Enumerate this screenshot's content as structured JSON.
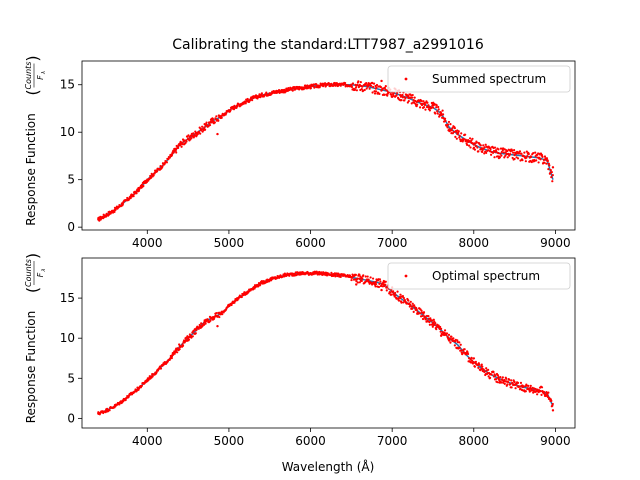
{
  "figure": {
    "title": "Calibrating the standard:LTT7987_a2991016"
  },
  "chart_data": [
    {
      "type": "scatter",
      "title": "Calibrating the standard:LTT7987_a2991016",
      "ylabel_main": "Response Function",
      "ylabel_frac_num": "Counts",
      "ylabel_frac_den": "F",
      "ylabel_frac_den_sub": "λ",
      "xlabel": "",
      "xlim": [
        3200,
        9240
      ],
      "ylim": [
        -0.3,
        17.5
      ],
      "xticks": [
        4000,
        5000,
        6000,
        7000,
        8000,
        9000
      ],
      "yticks": [
        0,
        5,
        10,
        15
      ],
      "legend": {
        "label": "Summed spectrum",
        "placement": "top-right"
      },
      "colors": {
        "points": "#ff0000",
        "fit": "#1f77b4"
      },
      "series": [
        {
          "name": "Summed spectrum",
          "kind": "points",
          "x": [
            3400,
            3500,
            3600,
            3700,
            3800,
            3900,
            4000,
            4100,
            4200,
            4300,
            4350,
            4400,
            4500,
            4600,
            4700,
            4800,
            4860,
            4900,
            5000,
            5100,
            5200,
            5300,
            5400,
            5500,
            5600,
            5700,
            5800,
            5900,
            6000,
            6100,
            6200,
            6300,
            6400,
            6500,
            6600,
            6700,
            6800,
            6870,
            6950,
            7000,
            7100,
            7200,
            7300,
            7400,
            7500,
            7600,
            7700,
            7800,
            7900,
            8000,
            8100,
            8200,
            8300,
            8400,
            8500,
            8600,
            8700,
            8800,
            8900,
            8970
          ],
          "y": [
            0.8,
            1.3,
            1.8,
            2.5,
            3.2,
            4.0,
            5.0,
            5.8,
            6.6,
            7.6,
            8.2,
            8.8,
            9.3,
            9.9,
            10.5,
            11.2,
            9.8,
            11.6,
            12.3,
            12.8,
            13.2,
            13.6,
            13.9,
            14.1,
            14.3,
            14.4,
            14.6,
            14.7,
            14.8,
            14.9,
            15.0,
            15.0,
            15.0,
            15.0,
            14.9,
            14.8,
            14.6,
            15.4,
            14.3,
            14.2,
            13.9,
            13.6,
            13.2,
            12.9,
            12.6,
            11.8,
            10.3,
            9.8,
            9.2,
            8.7,
            8.3,
            8.0,
            7.8,
            7.7,
            7.6,
            7.5,
            7.4,
            7.3,
            7.0,
            6.3
          ]
        },
        {
          "name": "",
          "kind": "line",
          "x": [
            3400,
            3500,
            3600,
            3700,
            3800,
            3900,
            4000,
            4100,
            4200,
            4300,
            4400,
            4500,
            4600,
            4700,
            4800,
            4900,
            5000,
            5100,
            5200,
            5300,
            5400,
            5500,
            5600,
            5700,
            5800,
            5900,
            6000,
            6100,
            6200,
            6300,
            6400,
            6500,
            6600,
            6700,
            6800,
            6900,
            7000,
            7100,
            7200,
            7300,
            7400,
            7500,
            7600,
            7700,
            7800,
            7900,
            8000,
            8100,
            8200,
            8300,
            8400,
            8500,
            8600,
            8700,
            8800,
            8900,
            8970
          ],
          "y": [
            0.8,
            1.3,
            1.8,
            2.5,
            3.2,
            4.0,
            5.0,
            5.8,
            6.6,
            7.6,
            8.7,
            9.3,
            9.9,
            10.5,
            11.2,
            11.6,
            12.3,
            12.8,
            13.2,
            13.6,
            13.9,
            14.1,
            14.3,
            14.4,
            14.6,
            14.7,
            14.8,
            14.9,
            15.0,
            15.0,
            15.0,
            15.0,
            14.9,
            14.8,
            14.6,
            14.4,
            14.2,
            13.9,
            13.6,
            13.2,
            12.9,
            12.6,
            12.0,
            10.5,
            9.8,
            9.2,
            8.7,
            8.3,
            8.0,
            7.8,
            7.7,
            7.6,
            7.5,
            7.4,
            7.3,
            7.0,
            5.0
          ]
        }
      ]
    },
    {
      "type": "scatter",
      "title": "",
      "ylabel_main": "Response Function",
      "ylabel_frac_num": "Counts",
      "ylabel_frac_den": "F",
      "ylabel_frac_den_sub": "λ",
      "xlabel": "Wavelength (Å)",
      "xlim": [
        3200,
        9240
      ],
      "ylim": [
        -1.2,
        20
      ],
      "xticks": [
        4000,
        5000,
        6000,
        7000,
        8000,
        9000
      ],
      "yticks": [
        0,
        5,
        10,
        15
      ],
      "legend": {
        "label": "Optimal spectrum",
        "placement": "top-right"
      },
      "colors": {
        "points": "#ff0000",
        "fit": "#1f77b4"
      },
      "series": [
        {
          "name": "Optimal spectrum",
          "kind": "points",
          "x": [
            3400,
            3500,
            3600,
            3700,
            3800,
            3900,
            4000,
            4100,
            4200,
            4300,
            4350,
            4400,
            4500,
            4600,
            4700,
            4800,
            4860,
            4900,
            5000,
            5100,
            5200,
            5300,
            5400,
            5500,
            5600,
            5700,
            5800,
            5900,
            6000,
            6100,
            6200,
            6300,
            6400,
            6500,
            6560,
            6600,
            6700,
            6800,
            6870,
            6900,
            7000,
            7100,
            7200,
            7300,
            7400,
            7500,
            7600,
            7700,
            7800,
            7900,
            8000,
            8100,
            8200,
            8300,
            8400,
            8500,
            8600,
            8700,
            8800,
            8900,
            8970
          ],
          "y": [
            0.6,
            1.0,
            1.5,
            2.2,
            3.0,
            3.8,
            4.8,
            5.7,
            6.7,
            7.7,
            8.3,
            9.0,
            10.0,
            11.0,
            12.0,
            12.6,
            11.5,
            13.0,
            14.0,
            14.9,
            15.6,
            16.3,
            16.9,
            17.3,
            17.6,
            17.9,
            18.0,
            18.1,
            18.1,
            18.1,
            18.0,
            17.9,
            17.8,
            17.6,
            16.7,
            17.4,
            17.2,
            17.0,
            16.0,
            16.7,
            15.8,
            15.0,
            14.3,
            13.5,
            12.7,
            11.9,
            10.3,
            9.7,
            8.8,
            8.0,
            7.0,
            6.2,
            5.5,
            5.0,
            4.6,
            4.2,
            3.9,
            3.7,
            3.5,
            3.1,
            1.0
          ]
        },
        {
          "name": "",
          "kind": "line",
          "x": [
            3400,
            3500,
            3600,
            3700,
            3800,
            3900,
            4000,
            4100,
            4200,
            4300,
            4400,
            4500,
            4600,
            4700,
            4800,
            4900,
            5000,
            5100,
            5200,
            5300,
            5400,
            5500,
            5600,
            5700,
            5800,
            5900,
            6000,
            6100,
            6200,
            6300,
            6400,
            6500,
            6600,
            6700,
            6800,
            6900,
            7000,
            7100,
            7200,
            7300,
            7400,
            7500,
            7600,
            7700,
            7800,
            7900,
            8000,
            8100,
            8200,
            8300,
            8400,
            8500,
            8600,
            8700,
            8800,
            8900,
            8970
          ],
          "y": [
            0.6,
            1.0,
            1.5,
            2.2,
            3.0,
            3.8,
            4.8,
            5.7,
            6.7,
            7.7,
            9.0,
            10.0,
            11.0,
            12.0,
            12.6,
            13.0,
            14.0,
            14.9,
            15.6,
            16.3,
            16.9,
            17.3,
            17.6,
            17.9,
            18.0,
            18.1,
            18.1,
            18.1,
            18.0,
            17.9,
            17.8,
            17.6,
            17.4,
            17.2,
            17.0,
            16.7,
            15.8,
            15.0,
            14.3,
            13.5,
            12.7,
            11.9,
            11.0,
            10.0,
            9.2,
            8.0,
            7.0,
            6.2,
            5.5,
            5.0,
            4.6,
            4.2,
            3.9,
            3.7,
            3.5,
            3.1,
            1.5
          ]
        }
      ]
    }
  ]
}
